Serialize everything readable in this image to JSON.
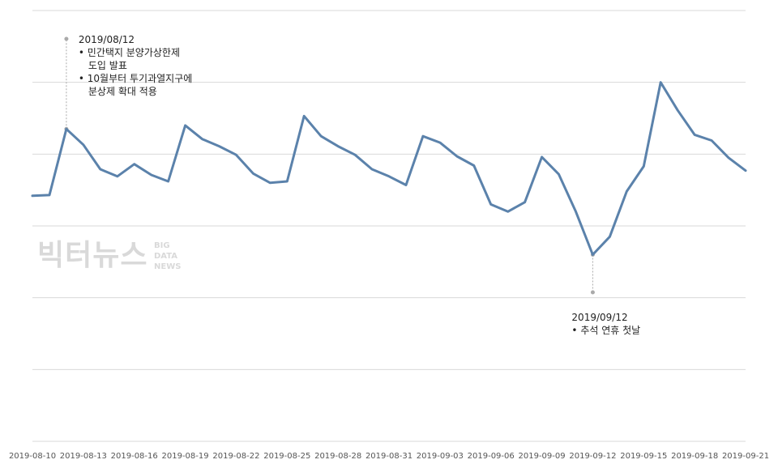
{
  "chart_data": {
    "type": "line",
    "title": "",
    "xlabel": "",
    "ylabel": "",
    "grid": true,
    "ylim": [
      0,
      6
    ],
    "gridlines": [
      0,
      1,
      2,
      3,
      4,
      5,
      6
    ],
    "x": [
      "2019-08-10",
      "2019-08-11",
      "2019-08-12",
      "2019-08-13",
      "2019-08-14",
      "2019-08-15",
      "2019-08-16",
      "2019-08-17",
      "2019-08-18",
      "2019-08-19",
      "2019-08-20",
      "2019-08-21",
      "2019-08-22",
      "2019-08-23",
      "2019-08-24",
      "2019-08-25",
      "2019-08-26",
      "2019-08-27",
      "2019-08-28",
      "2019-08-29",
      "2019-08-30",
      "2019-08-31",
      "2019-09-01",
      "2019-09-02",
      "2019-09-03",
      "2019-09-04",
      "2019-09-05",
      "2019-09-06",
      "2019-09-07",
      "2019-09-08",
      "2019-09-09",
      "2019-09-10",
      "2019-09-11",
      "2019-09-12",
      "2019-09-13",
      "2019-09-14",
      "2019-09-15",
      "2019-09-16",
      "2019-09-17",
      "2019-09-18",
      "2019-09-19",
      "2019-09-20",
      "2019-09-21"
    ],
    "series": [
      {
        "color": "#5b82ab",
        "values": [
          3.42,
          3.43,
          4.35,
          4.13,
          3.79,
          3.69,
          3.86,
          3.71,
          3.62,
          4.4,
          4.21,
          4.11,
          3.99,
          3.73,
          3.6,
          3.62,
          4.53,
          4.25,
          4.11,
          3.99,
          3.79,
          3.69,
          3.57,
          4.25,
          4.16,
          3.97,
          3.84,
          3.3,
          3.2,
          3.33,
          3.96,
          3.72,
          3.2,
          2.6,
          2.85,
          3.48,
          3.83,
          5.0,
          4.61,
          4.27,
          4.19,
          3.95,
          3.77
        ]
      }
    ],
    "tick_labels": [
      "2019-08-10",
      "2019-08-13",
      "2019-08-16",
      "2019-08-19",
      "2019-08-22",
      "2019-08-25",
      "2019-08-28",
      "2019-08-31",
      "2019-09-03",
      "2019-09-06",
      "2019-09-09",
      "2019-09-12",
      "2019-09-15",
      "2019-09-18",
      "2019-09-21"
    ],
    "annotations": [
      {
        "x": "2019-08-12",
        "date": "2019/08/12",
        "lines": [
          "• 민간택지 분양가상한제",
          "  도입 발표",
          "• 10월부터 투기과열지구에",
          "  분상제 확대 적용"
        ],
        "direction": "above"
      },
      {
        "x": "2019-09-12",
        "date": "2019/09/12",
        "lines": [
          "• 추석 연휴 첫날"
        ],
        "direction": "below"
      }
    ]
  },
  "watermark": {
    "main": "빅터뉴스",
    "sub": [
      "BIG",
      "DATA",
      "NEWS"
    ]
  },
  "colors": {
    "grid": "#d9d9d9",
    "leader": "#aaaaaa",
    "line": "#5b82ab"
  }
}
